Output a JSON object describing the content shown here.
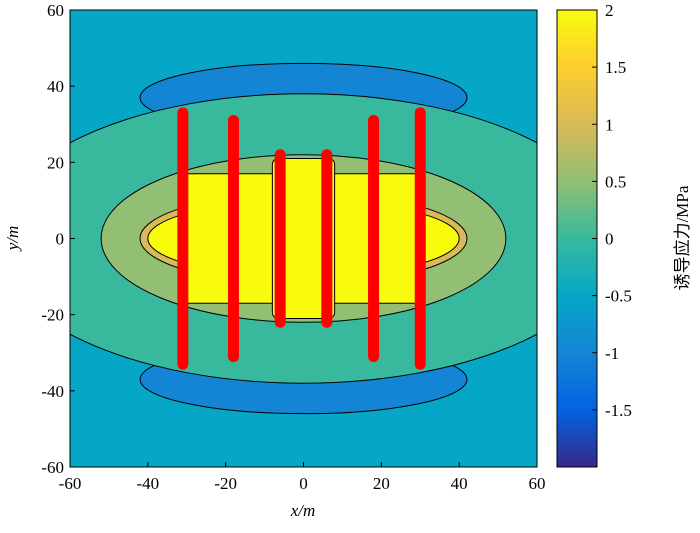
{
  "chart_data": {
    "type": "contour",
    "xlabel": "x/m",
    "ylabel": "y/m",
    "colorbar_label": "诱导应力/MPa",
    "xlim": [
      -60,
      60
    ],
    "ylim": [
      -60,
      60
    ],
    "xticks": [
      -60,
      -40,
      -20,
      0,
      20,
      40,
      60
    ],
    "yticks": [
      -60,
      -40,
      -20,
      0,
      20,
      40,
      60
    ],
    "clim": [
      -2,
      2
    ],
    "cticks": [
      -1.5,
      -1,
      -0.5,
      0,
      0.5,
      1,
      1.5,
      2
    ],
    "colormap": [
      "#352a87",
      "#0363e1",
      "#1485d4",
      "#06a7c6",
      "#38b99e",
      "#92bf73",
      "#d9ba56",
      "#fcce2e",
      "#f9fb0e"
    ],
    "background_level": -0.5,
    "regions": [
      {
        "level": -1,
        "shape": "ellipse",
        "cx": 0,
        "cy": 37,
        "rx": 42,
        "ry": 9
      },
      {
        "level": -1,
        "shape": "ellipse",
        "cx": 0,
        "cy": -37,
        "rx": 42,
        "ry": 9
      },
      {
        "level": 0,
        "shape": "ellipse",
        "cx": 0,
        "cy": 0,
        "rx": 80,
        "ry": 38
      },
      {
        "level": 0.5,
        "shape": "ellipse",
        "cx": 0,
        "cy": 0,
        "rx": 52,
        "ry": 22
      },
      {
        "level": 1,
        "shape": "ellipse",
        "cx": 0,
        "cy": 0,
        "rx": 42,
        "ry": 12
      },
      {
        "level": 2,
        "shape": "ellipse",
        "cx": 0,
        "cy": 0,
        "rx": 40,
        "ry": 10
      },
      {
        "level": 2,
        "shape": "rect",
        "cx": 0,
        "cy": 0,
        "rx": 31,
        "ry": 17
      },
      {
        "level": 2,
        "shape": "rect",
        "cx": 0,
        "cy": 0,
        "rx": 8,
        "ry": 21
      }
    ],
    "fracture_color": "#ff0000",
    "fractures": [
      {
        "x": -31,
        "y": [
          -33,
          33
        ]
      },
      {
        "x": -18,
        "y": [
          -31,
          31
        ]
      },
      {
        "x": -6,
        "y": [
          -22,
          22
        ]
      },
      {
        "x": 6,
        "y": [
          -22,
          22
        ]
      },
      {
        "x": 18,
        "y": [
          -31,
          31
        ]
      },
      {
        "x": 30,
        "y": [
          -33,
          33
        ]
      }
    ]
  }
}
